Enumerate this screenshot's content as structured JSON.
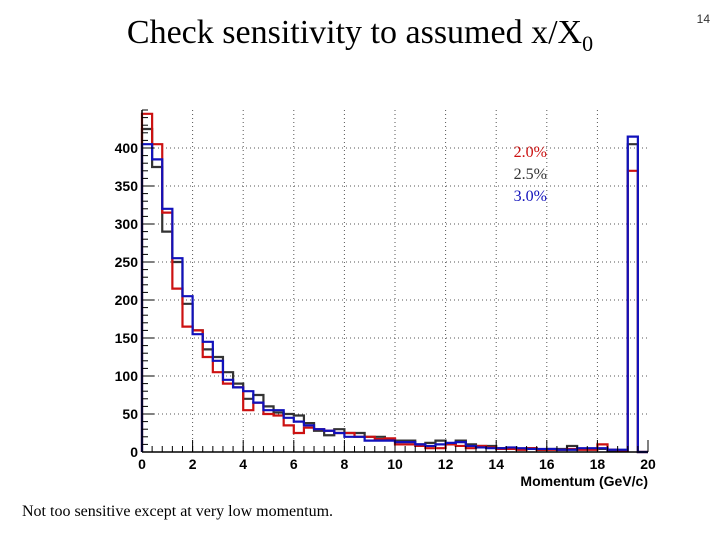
{
  "slide": {
    "title_main": "Check sensitivity to assumed x/X",
    "title_sub": "0",
    "page_number": "14",
    "caption": "Not too sensitive except at very low momentum."
  },
  "chart_data": {
    "type": "histogram",
    "title": "",
    "xlabel": "Momentum (GeV/c)",
    "ylabel": "",
    "xlim": [
      0,
      20
    ],
    "ylim": [
      0,
      450
    ],
    "xticks": [
      0,
      2,
      4,
      6,
      8,
      10,
      12,
      14,
      16,
      18,
      20
    ],
    "yticks": [
      0,
      50,
      100,
      150,
      200,
      250,
      300,
      350,
      400
    ],
    "grid": true,
    "legend_position": "top-right",
    "bin_edges": [
      0,
      0.4,
      0.8,
      1.2,
      1.6,
      2.0,
      2.4,
      2.8,
      3.2,
      3.6,
      4.0,
      4.4,
      4.8,
      5.2,
      5.6,
      6.0,
      6.4,
      6.8,
      7.2,
      7.6,
      8.0,
      8.4,
      8.8,
      9.2,
      9.6,
      10.0,
      10.4,
      10.8,
      11.2,
      11.6,
      12.0,
      12.4,
      12.8,
      13.2,
      13.6,
      14.0,
      14.4,
      14.8,
      15.2,
      15.6,
      16.0,
      16.4,
      16.8,
      17.2,
      17.6,
      18.0,
      18.4,
      18.8,
      19.2,
      19.6,
      20.0
    ],
    "series": [
      {
        "name": "2.0%",
        "color": "#cc1111",
        "values": [
          445,
          405,
          315,
          215,
          165,
          160,
          125,
          105,
          90,
          85,
          55,
          65,
          50,
          48,
          35,
          25,
          32,
          30,
          28,
          25,
          25,
          20,
          20,
          17,
          18,
          10,
          10,
          8,
          5,
          5,
          10,
          8,
          5,
          8,
          6,
          4,
          4,
          3,
          5,
          3,
          3,
          3,
          4,
          3,
          3,
          10,
          3,
          2,
          370,
          0
        ]
      },
      {
        "name": "2.5%",
        "color": "#333333",
        "values": [
          425,
          375,
          290,
          250,
          195,
          160,
          135,
          125,
          105,
          90,
          70,
          75,
          60,
          52,
          50,
          48,
          38,
          28,
          22,
          30,
          25,
          25,
          20,
          20,
          17,
          15,
          15,
          10,
          12,
          15,
          10,
          15,
          10,
          8,
          8,
          5,
          5,
          4,
          5,
          3,
          4,
          4,
          8,
          4,
          4,
          4,
          2,
          2,
          405,
          0
        ]
      },
      {
        "name": "3.0%",
        "color": "#1111bb",
        "values": [
          405,
          385,
          320,
          255,
          205,
          155,
          145,
          120,
          95,
          85,
          80,
          65,
          55,
          55,
          45,
          40,
          35,
          30,
          28,
          25,
          20,
          20,
          15,
          15,
          15,
          13,
          13,
          10,
          8,
          10,
          12,
          13,
          8,
          6,
          5,
          5,
          6,
          5,
          4,
          4,
          4,
          3,
          3,
          5,
          5,
          5,
          3,
          3,
          415,
          0
        ]
      }
    ],
    "legend": [
      "2.0%",
      "2.5%",
      "3.0%"
    ]
  }
}
